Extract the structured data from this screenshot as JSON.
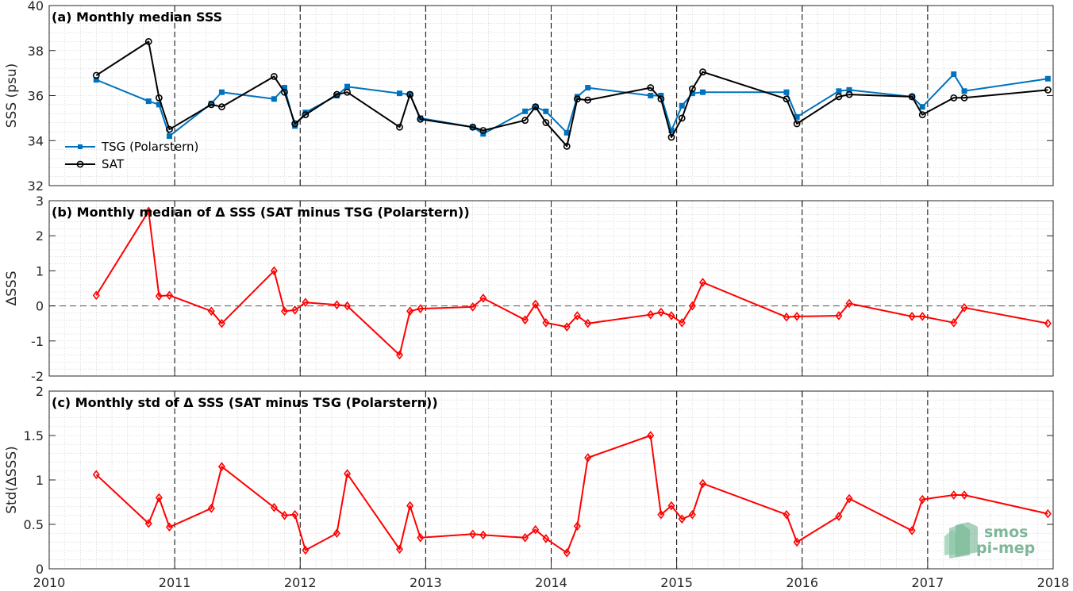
{
  "colors": {
    "tsg": "#0072BD",
    "sat": "#000000",
    "delta": "#FF0000",
    "grid": "#cfcfcf",
    "axis": "#262626"
  },
  "logo": {
    "line1": "smos",
    "line2": "pi-mep"
  },
  "chart_data": [
    {
      "type": "line",
      "title": "(a) Monthly median SSS",
      "ylabel": "SSS (psu)",
      "xlim": [
        2010,
        2018
      ],
      "ylim": [
        32,
        40
      ],
      "xticks": [
        2010,
        2011,
        2012,
        2013,
        2014,
        2015,
        2016,
        2017,
        2018
      ],
      "yticks": [
        32,
        34,
        36,
        38,
        40
      ],
      "legend": {
        "position": "bottom-left",
        "entries": [
          "TSG (Polarstern)",
          "SAT"
        ]
      },
      "series": [
        {
          "name": "TSG (Polarstern)",
          "marker": "square",
          "x": [
            2010.375,
            2010.792,
            2010.875,
            2010.958,
            2011.292,
            2011.375,
            2011.792,
            2011.875,
            2011.958,
            2012.042,
            2012.292,
            2012.375,
            2012.792,
            2012.875,
            2012.958,
            2013.375,
            2013.458,
            2013.792,
            2013.875,
            2013.958,
            2014.125,
            2014.208,
            2014.292,
            2014.792,
            2014.875,
            2014.958,
            2015.042,
            2015.125,
            2015.208,
            2015.875,
            2015.958,
            2016.292,
            2016.375,
            2016.875,
            2016.958,
            2017.208,
            2017.292,
            2017.958
          ],
          "y": [
            36.7,
            35.75,
            35.6,
            34.2,
            35.65,
            36.15,
            35.85,
            36.35,
            34.65,
            35.25,
            36.0,
            36.4,
            36.1,
            36.05,
            35.0,
            34.6,
            34.3,
            35.3,
            35.5,
            35.3,
            34.35,
            35.95,
            36.35,
            36.0,
            36.0,
            34.45,
            35.55,
            36.1,
            36.15,
            36.15,
            35.05,
            36.2,
            36.25,
            35.95,
            35.5,
            36.95,
            36.2,
            36.75
          ]
        },
        {
          "name": "SAT",
          "marker": "circle",
          "x": [
            2010.375,
            2010.792,
            2010.875,
            2010.958,
            2011.292,
            2011.375,
            2011.792,
            2011.875,
            2011.958,
            2012.042,
            2012.292,
            2012.375,
            2012.792,
            2012.875,
            2012.958,
            2013.375,
            2013.458,
            2013.792,
            2013.875,
            2013.958,
            2014.125,
            2014.208,
            2014.292,
            2014.792,
            2014.875,
            2014.958,
            2015.042,
            2015.125,
            2015.208,
            2015.875,
            2015.958,
            2016.292,
            2016.375,
            2016.875,
            2016.958,
            2017.208,
            2017.292,
            2017.958
          ],
          "y": [
            36.9,
            38.4,
            35.9,
            34.5,
            35.6,
            35.5,
            36.85,
            36.15,
            34.75,
            35.15,
            36.05,
            36.15,
            34.6,
            36.05,
            34.95,
            34.6,
            34.45,
            34.9,
            35.5,
            34.8,
            33.75,
            35.85,
            35.8,
            36.35,
            35.85,
            34.15,
            35.0,
            36.3,
            37.05,
            35.85,
            34.75,
            35.95,
            36.05,
            35.95,
            35.15,
            35.9,
            35.9,
            36.25
          ]
        }
      ]
    },
    {
      "type": "line",
      "title": "(b) Monthly median of Δ SSS (SAT minus TSG (Polarstern))",
      "ylabel": "ΔSSS",
      "xlim": [
        2010,
        2018
      ],
      "ylim": [
        -2,
        3
      ],
      "xticks": [
        2010,
        2011,
        2012,
        2013,
        2014,
        2015,
        2016,
        2017,
        2018
      ],
      "yticks": [
        -2,
        -1,
        0,
        1,
        2,
        3
      ],
      "reference_line": 0,
      "series": [
        {
          "name": "",
          "marker": "diamond",
          "x": [
            2010.375,
            2010.792,
            2010.875,
            2010.958,
            2011.292,
            2011.375,
            2011.792,
            2011.875,
            2011.958,
            2012.042,
            2012.292,
            2012.375,
            2012.792,
            2012.875,
            2012.958,
            2013.375,
            2013.458,
            2013.792,
            2013.875,
            2013.958,
            2014.125,
            2014.208,
            2014.292,
            2014.792,
            2014.875,
            2014.958,
            2015.042,
            2015.125,
            2015.208,
            2015.875,
            2015.958,
            2016.292,
            2016.375,
            2016.875,
            2016.958,
            2017.208,
            2017.292,
            2017.958
          ],
          "y": [
            0.3,
            2.7,
            0.28,
            0.3,
            -0.15,
            -0.5,
            1.0,
            -0.15,
            -0.12,
            0.1,
            0.03,
            0.0,
            -1.4,
            -0.15,
            -0.08,
            -0.03,
            0.22,
            -0.4,
            0.05,
            -0.48,
            -0.6,
            -0.28,
            -0.5,
            -0.25,
            -0.18,
            -0.28,
            -0.48,
            0.0,
            0.67,
            -0.32,
            -0.3,
            -0.28,
            0.07,
            -0.3,
            -0.3,
            -0.48,
            -0.05,
            -0.5
          ]
        }
      ]
    },
    {
      "type": "line",
      "title": "(c) Monthly std of Δ SSS (SAT minus TSG (Polarstern))",
      "ylabel": "Std(ΔSSS)",
      "xlim": [
        2010,
        2018
      ],
      "ylim": [
        0,
        2
      ],
      "xticks": [
        2010,
        2011,
        2012,
        2013,
        2014,
        2015,
        2016,
        2017,
        2018
      ],
      "yticks": [
        0,
        0.5,
        1,
        1.5,
        2
      ],
      "series": [
        {
          "name": "",
          "marker": "diamond",
          "x": [
            2010.375,
            2010.792,
            2010.875,
            2010.958,
            2011.292,
            2011.375,
            2011.792,
            2011.875,
            2011.958,
            2012.042,
            2012.292,
            2012.375,
            2012.792,
            2012.875,
            2012.958,
            2013.375,
            2013.458,
            2013.792,
            2013.875,
            2013.958,
            2014.125,
            2014.208,
            2014.292,
            2014.792,
            2014.875,
            2014.958,
            2015.042,
            2015.125,
            2015.208,
            2015.875,
            2015.958,
            2016.292,
            2016.375,
            2016.875,
            2016.958,
            2017.208,
            2017.292,
            2017.958
          ],
          "y": [
            1.06,
            0.51,
            0.8,
            0.47,
            0.68,
            1.15,
            0.69,
            0.6,
            0.61,
            0.21,
            0.4,
            1.07,
            0.22,
            0.71,
            0.35,
            0.39,
            0.38,
            0.35,
            0.44,
            0.34,
            0.18,
            0.48,
            1.25,
            1.5,
            0.61,
            0.71,
            0.56,
            0.61,
            0.96,
            0.61,
            0.3,
            0.59,
            0.79,
            0.43,
            0.78,
            0.83,
            0.83,
            0.62
          ]
        }
      ]
    }
  ]
}
